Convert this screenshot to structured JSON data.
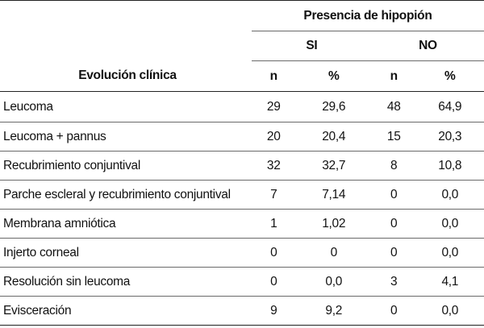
{
  "table": {
    "group_header": "Presencia de hipopión",
    "subgroups": [
      "SI",
      "NO"
    ],
    "row_header": "Evolución clínica",
    "column_headers": [
      "n",
      "%",
      "n",
      "%"
    ],
    "rows": [
      {
        "label": "Leucoma",
        "si_n": "29",
        "si_pct": "29,6",
        "no_n": "48",
        "no_pct": "64,9"
      },
      {
        "label": "Leucoma + pannus",
        "si_n": "20",
        "si_pct": "20,4",
        "no_n": "15",
        "no_pct": "20,3"
      },
      {
        "label": "Recubrimiento conjuntival",
        "si_n": "32",
        "si_pct": "32,7",
        "no_n": "8",
        "no_pct": "10,8"
      },
      {
        "label": "Parche escleral y recubrimiento conjuntival",
        "si_n": "7",
        "si_pct": "7,14",
        "no_n": "0",
        "no_pct": "0,0"
      },
      {
        "label": "Membrana amniótica",
        "si_n": "1",
        "si_pct": "1,02",
        "no_n": "0",
        "no_pct": "0,0"
      },
      {
        "label": "Injerto corneal",
        "si_n": "0",
        "si_pct": "0",
        "no_n": "0",
        "no_pct": "0,0"
      },
      {
        "label": "Resolución sin leucoma",
        "si_n": "0",
        "si_pct": "0,0",
        "no_n": "3",
        "no_pct": "4,1"
      },
      {
        "label": "Evisceración",
        "si_n": "9",
        "si_pct": "9,2",
        "no_n": "0",
        "no_pct": "0,0"
      }
    ]
  }
}
